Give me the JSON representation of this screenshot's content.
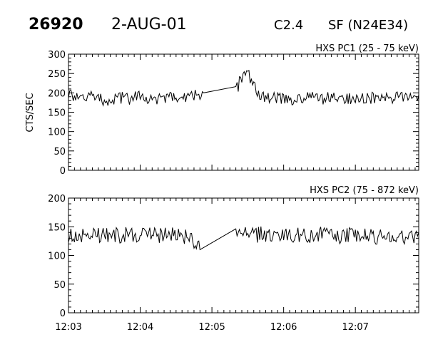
{
  "header": {
    "event_number": "26920",
    "date": "2-AUG-01",
    "flare_class": "C2.4",
    "flare_location": "SF (N24E34)"
  },
  "chart_data": [
    {
      "type": "line",
      "title": "HXS PC1 (25 - 75 keV)",
      "xlabel": "",
      "ylabel": "CTS/SEC",
      "xlim": [
        "12:03:00",
        "12:07:53"
      ],
      "ylim": [
        0,
        300
      ],
      "yticks": [
        0,
        50,
        100,
        150,
        200,
        250,
        300
      ],
      "xticks": [
        "12:03",
        "12:04",
        "12:05",
        "12:06",
        "12:07"
      ],
      "grid": false,
      "series": [
        {
          "x": [
            "12:03:00",
            "12:03:10",
            "12:03:20",
            "12:03:30",
            "12:03:40",
            "12:03:50",
            "12:04:00",
            "12:04:10",
            "12:04:20",
            "12:04:30",
            "12:04:40",
            "12:04:50",
            "12:04:53",
            "12:05:20",
            "12:05:25",
            "12:05:30",
            "12:05:35",
            "12:05:40",
            "12:05:45",
            "12:05:50",
            "12:06:00",
            "12:06:10",
            "12:06:20",
            "12:06:30",
            "12:06:40",
            "12:06:50",
            "12:07:00",
            "12:07:10",
            "12:07:20",
            "12:07:30",
            "12:07:40",
            "12:07:53"
          ],
          "values": [
            195,
            182,
            190,
            178,
            188,
            185,
            190,
            183,
            188,
            184,
            192,
            198,
            200,
            205,
            240,
            250,
            215,
            195,
            185,
            190,
            187,
            182,
            190,
            185,
            188,
            183,
            190,
            185,
            187,
            184,
            190,
            195
          ],
          "noise": 16
        }
      ]
    },
    {
      "type": "line",
      "title": "HXS PC2 (75 - 872 keV)",
      "xlabel": "",
      "ylabel": "",
      "xlim": [
        "12:03:00",
        "12:07:53"
      ],
      "ylim": [
        0,
        200
      ],
      "yticks": [
        0,
        50,
        100,
        150,
        200
      ],
      "xticks": [
        "12:03",
        "12:04",
        "12:05",
        "12:06",
        "12:07"
      ],
      "grid": false,
      "series": [
        {
          "x": [
            "12:03:00",
            "12:03:15",
            "12:03:30",
            "12:03:45",
            "12:04:00",
            "12:04:15",
            "12:04:30",
            "12:04:40",
            "12:04:50",
            "12:05:20",
            "12:05:30",
            "12:05:45",
            "12:06:00",
            "12:06:15",
            "12:06:30",
            "12:06:45",
            "12:07:00",
            "12:07:15",
            "12:07:30",
            "12:07:45",
            "12:07:53"
          ],
          "values": [
            133,
            138,
            136,
            135,
            137,
            134,
            138,
            132,
            110,
            145,
            135,
            137,
            136,
            134,
            138,
            133,
            136,
            132,
            135,
            130,
            140
          ],
          "noise": 14
        }
      ]
    }
  ]
}
